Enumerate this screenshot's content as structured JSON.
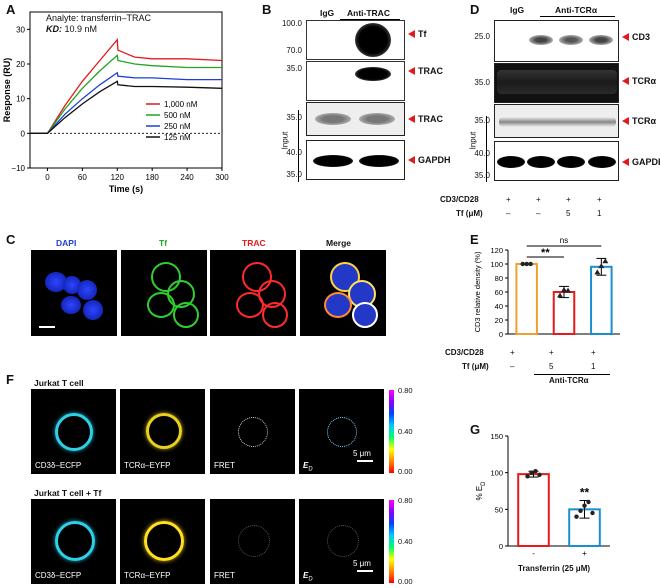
{
  "panels": {
    "A": "A",
    "B": "B",
    "C": "C",
    "D": "D",
    "E": "E",
    "F": "F",
    "G": "G"
  },
  "panelA": {
    "analyte": "Analyte: transferrin–TRAC",
    "kd_label": "KD:",
    "kd_value": "10.9 nM",
    "xlabel": "Time (s)",
    "ylabel": "Response (RU)",
    "legend": [
      "1,000 nM",
      "500 nM",
      "250 nM",
      "125 nM"
    ],
    "colors": [
      "#e41a1c",
      "#1fa51f",
      "#1f3fd6",
      "#111111"
    ]
  },
  "panelB": {
    "lane_labels": [
      "IgG",
      "Anti-TRAC"
    ],
    "rows": [
      {
        "mw": [
          "100.0",
          "70.0"
        ],
        "label": "Tf"
      },
      {
        "mw": [
          "35.0"
        ],
        "label": "TRAC"
      },
      {
        "mw": [
          "35.0"
        ],
        "label": "TRAC"
      },
      {
        "mw": [
          "40.0",
          "35.0"
        ],
        "label": "GAPDH"
      }
    ],
    "input_label": "Input"
  },
  "panelD": {
    "lane_labels": [
      "IgG",
      "Anti-TCRα"
    ],
    "rows": [
      {
        "mw": [
          "25.0"
        ],
        "label": "CD3"
      },
      {
        "mw": [
          "35.0"
        ],
        "label": "TCRα"
      },
      {
        "mw": [
          "35.0"
        ],
        "label": "TCRα"
      },
      {
        "mw": [
          "40.0",
          "35.0"
        ],
        "label": "GAPDH"
      }
    ],
    "input_label": "Input",
    "row1_label": "CD3/CD28",
    "row1_values": [
      "+",
      "+",
      "+",
      "+"
    ],
    "row2_label": "Tf (μM)",
    "row2_values": [
      "–",
      "–",
      "5",
      "1"
    ]
  },
  "panelC": {
    "titles": [
      "DAPI",
      "Tf",
      "TRAC",
      "Merge"
    ],
    "title_colors": [
      "#1f3fd6",
      "#1fa51f",
      "#e41a1c",
      "#111111"
    ]
  },
  "panelE": {
    "ylabel": "CD3 relative density (%)",
    "sig1": "**",
    "sig2": "ns",
    "row1_label": "CD3/CD28",
    "row1_values": [
      "+",
      "+",
      "+"
    ],
    "row2_label": "Tf (μM)",
    "row2_values": [
      "–",
      "5",
      "1"
    ],
    "group_label": "Anti-TCRα"
  },
  "panelF": {
    "title1": "Jurkat T cell",
    "title2": "Jurkat T cell + Tf",
    "channels": [
      "CD3δ–ECFP",
      "TCRα–EYFP",
      "FRET",
      "E"
    ],
    "channel_sub": "D",
    "scale": "5 μm",
    "colorbar_ticks": [
      "0.80",
      "0.40",
      "0.00"
    ]
  },
  "panelG": {
    "ylabel": "% E",
    "ylabel_sub": "D",
    "sig": "**",
    "xvalues": [
      "-",
      "+"
    ],
    "xlabel": "Transferrin (25 μM)"
  },
  "chart_data": [
    {
      "type": "line",
      "title": "Analyte: transferrin–TRAC",
      "xlabel": "Time (s)",
      "ylabel": "Response (RU)",
      "xlim": [
        -30,
        300
      ],
      "ylim": [
        -10,
        35
      ],
      "xticks": [
        0,
        60,
        120,
        180,
        240,
        300
      ],
      "yticks": [
        -10,
        0,
        10,
        20,
        30
      ],
      "series": [
        {
          "name": "1,000 nM",
          "color": "#e41a1c",
          "x": [
            -30,
            0,
            30,
            60,
            90,
            120,
            121,
            150,
            180,
            240,
            300
          ],
          "y": [
            0,
            0,
            8,
            15,
            21,
            27,
            24,
            22,
            21.5,
            21.5,
            21
          ]
        },
        {
          "name": "500 nM",
          "color": "#1fa51f",
          "x": [
            -30,
            0,
            30,
            60,
            90,
            120,
            121,
            150,
            180,
            240,
            300
          ],
          "y": [
            0,
            0,
            7,
            13,
            18,
            22.5,
            21,
            20,
            19.5,
            19,
            19
          ]
        },
        {
          "name": "250 nM",
          "color": "#1f3fd6",
          "x": [
            -30,
            0,
            30,
            60,
            90,
            120,
            121,
            150,
            180,
            240,
            300
          ],
          "y": [
            0,
            0,
            5.5,
            10,
            14,
            17.5,
            16.5,
            16,
            16,
            15.5,
            15.5
          ]
        },
        {
          "name": "125 nM",
          "color": "#111111",
          "x": [
            -30,
            0,
            30,
            60,
            90,
            120,
            121,
            150,
            180,
            240,
            300
          ],
          "y": [
            0,
            0,
            4.5,
            8.5,
            12,
            15,
            14,
            13.5,
            13.5,
            13.3,
            13
          ]
        }
      ]
    },
    {
      "type": "bar",
      "ylabel": "CD3 relative density (%)",
      "ylim": [
        0,
        120
      ],
      "yticks": [
        0,
        20,
        40,
        60,
        80,
        100,
        120
      ],
      "categories": [
        "– Tf",
        "5 μM Tf",
        "1 μM Tf"
      ],
      "values": [
        100,
        60,
        96
      ],
      "errors": [
        1,
        8,
        12
      ],
      "bar_colors": [
        "#f0a030",
        "#e41a1c",
        "#1a8fd0"
      ],
      "points": [
        [
          100,
          100,
          100
        ],
        [
          55,
          63,
          62
        ],
        [
          88,
          97,
          104
        ]
      ]
    },
    {
      "type": "bar",
      "ylabel": "% ED",
      "ylim": [
        0,
        150
      ],
      "yticks": [
        0,
        50,
        100,
        150
      ],
      "categories": [
        "-",
        "+"
      ],
      "values": [
        98,
        50
      ],
      "errors": [
        4,
        12
      ],
      "bar_colors": [
        "#e41a1c",
        "#1a8fd0"
      ],
      "points": [
        [
          95,
          100,
          102,
          97
        ],
        [
          40,
          48,
          55,
          60,
          45
        ]
      ]
    }
  ]
}
